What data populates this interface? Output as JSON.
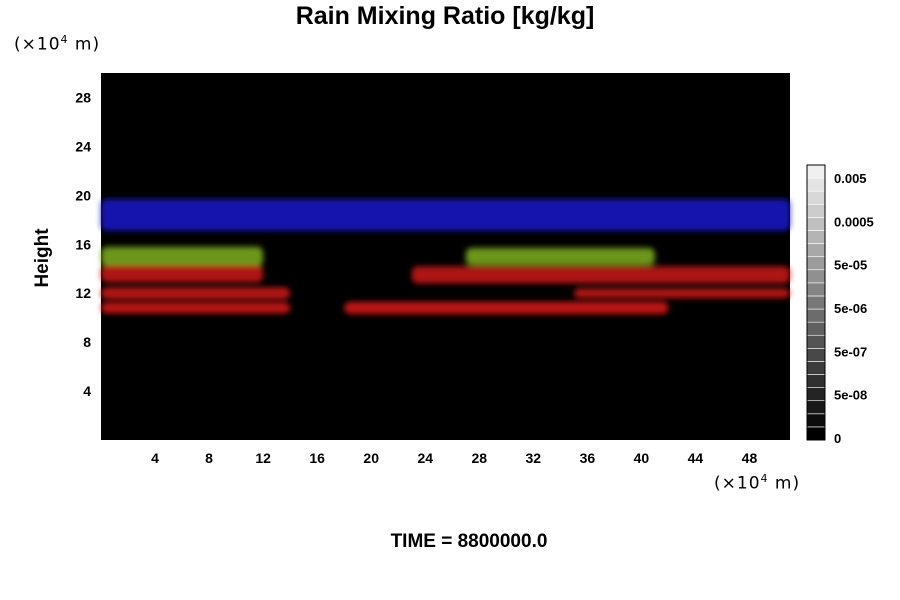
{
  "chart_data": {
    "type": "heatmap",
    "title": "Rain Mixing Ratio [kg/kg]",
    "xlabel": "",
    "ylabel": "Height",
    "x_unit": "(×10",
    "x_unit_exp": "4",
    "x_unit_tail": " m)",
    "y_unit": "(×10",
    "y_unit_exp": "4",
    "y_unit_tail": " m)",
    "xlim": [
      0,
      51
    ],
    "ylim": [
      0,
      30
    ],
    "x_ticks": [
      "4",
      "8",
      "12",
      "16",
      "20",
      "24",
      "28",
      "32",
      "36",
      "40",
      "44",
      "48"
    ],
    "y_ticks": [
      "4",
      "8",
      "12",
      "16",
      "20",
      "24",
      "28"
    ],
    "x_tick_values": [
      4,
      8,
      12,
      16,
      20,
      24,
      28,
      32,
      36,
      40,
      44,
      48
    ],
    "y_tick_values": [
      4,
      8,
      12,
      16,
      20,
      24,
      28
    ],
    "colorbar": {
      "labels": [
        "0",
        "5e-08",
        "5e-07",
        "5e-06",
        "5e-05",
        "0.0005",
        "0.005"
      ],
      "levels": 21
    },
    "bands": [
      {
        "color": "#1a1acc",
        "y_center": 18.4,
        "thickness": 2.6,
        "x_range": [
          0,
          51
        ]
      },
      {
        "color": "#7fb21e",
        "y_center": 15.0,
        "thickness": 1.6,
        "x_range": [
          0,
          12
        ]
      },
      {
        "color": "#cc1414",
        "y_center": 13.6,
        "thickness": 1.4,
        "x_range": [
          0,
          12
        ]
      },
      {
        "color": "#cc1414",
        "y_center": 12.0,
        "thickness": 1.0,
        "x_range": [
          0,
          14
        ]
      },
      {
        "color": "#dd1a1a",
        "y_center": 10.8,
        "thickness": 0.9,
        "x_range": [
          0,
          14
        ]
      },
      {
        "color": "#dd1a1a",
        "y_center": 10.8,
        "thickness": 1.0,
        "x_range": [
          18,
          42
        ]
      },
      {
        "color": "#cc1414",
        "y_center": 13.5,
        "thickness": 1.4,
        "x_range": [
          23,
          51
        ]
      },
      {
        "color": "#7fb21e",
        "y_center": 15.0,
        "thickness": 1.4,
        "x_range": [
          27,
          41
        ]
      },
      {
        "color": "#cc1414",
        "y_center": 12.0,
        "thickness": 0.8,
        "x_range": [
          35,
          51
        ]
      }
    ]
  },
  "footer": {
    "time_label": "TIME = 8800000.0"
  }
}
